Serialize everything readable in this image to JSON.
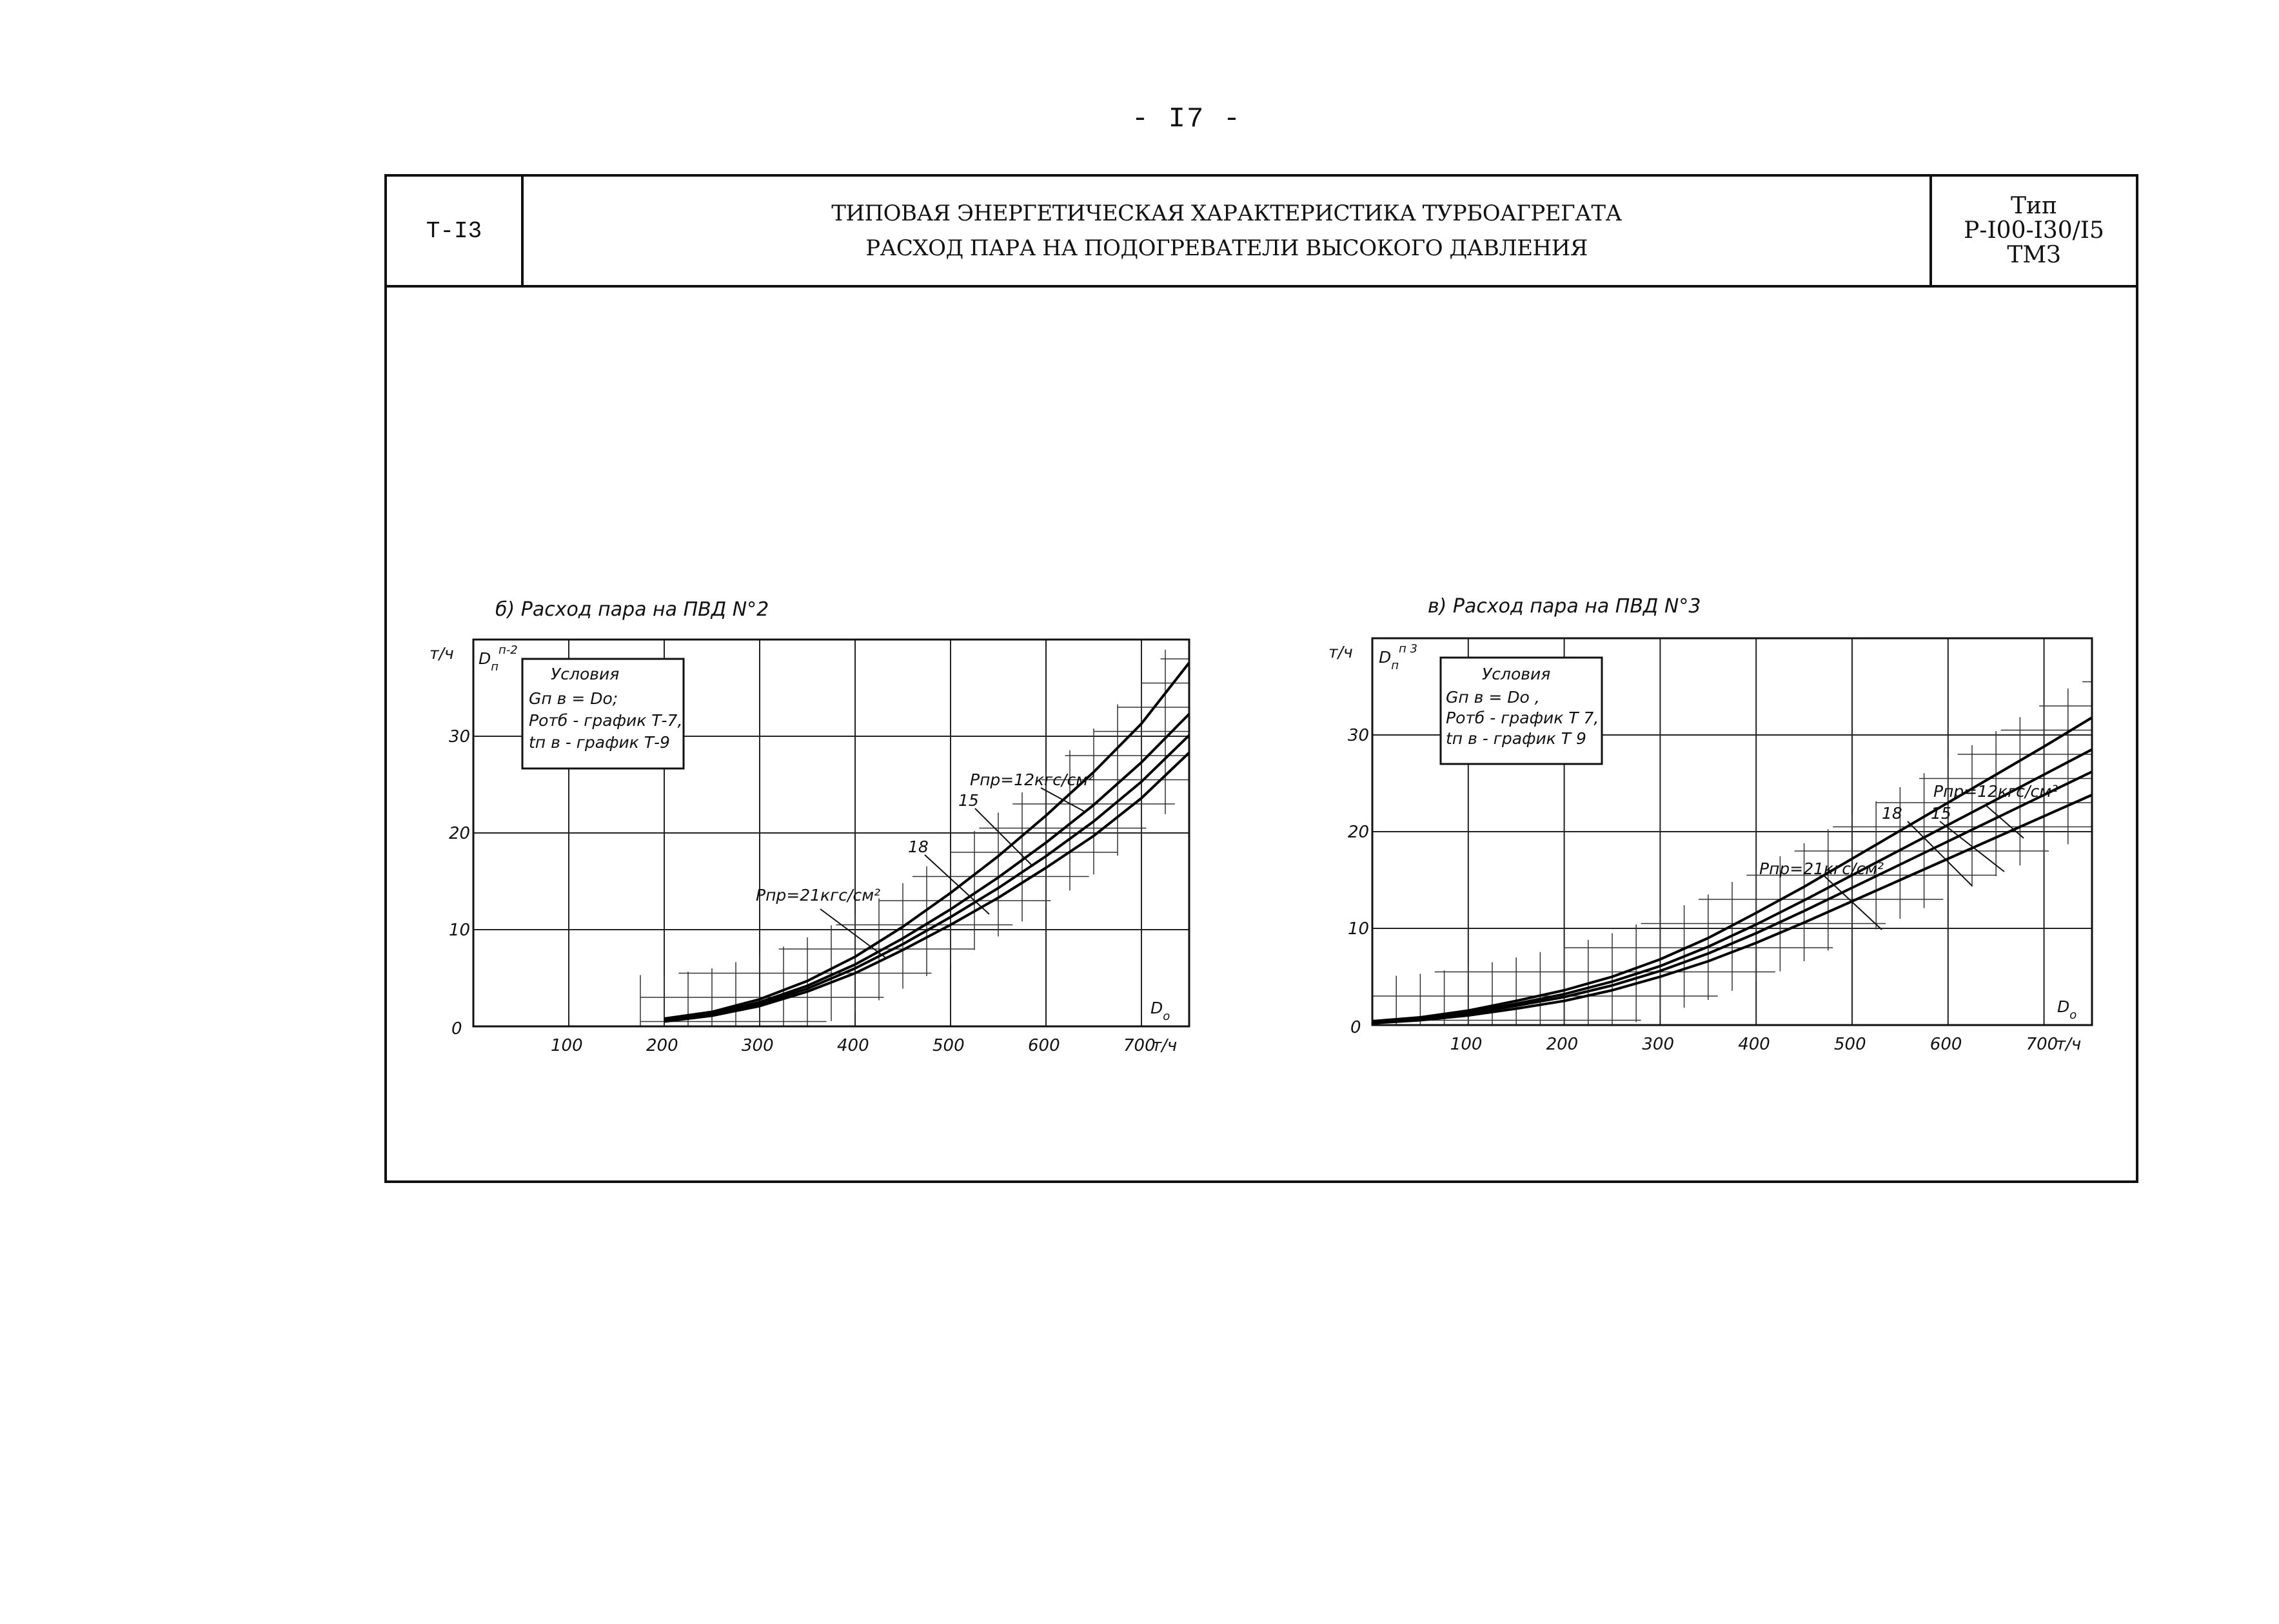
{
  "page": {
    "number": "- I7 -"
  },
  "header": {
    "code": "Т-I3",
    "title_line1": "ТИПОВАЯ ЭНЕРГЕТИЧЕСКАЯ ХАРАКТЕРИСТИКА ТУРБОАГРЕГАТА",
    "title_line2": "РАСХОД ПАРА НА ПОДОГРЕВАТЕЛИ ВЫСОКОГО ДАВЛЕНИЯ",
    "type_label": "Тип",
    "type_model": "Р-I00-I30/I5",
    "type_plant": "ТМЗ"
  },
  "chart_data": [
    {
      "type": "line",
      "title": "б) Расход пара на ПВД N°2",
      "ylabel": "т/ч",
      "ysymbol": "D",
      "ysymbol_sub": "п",
      "ysymbol_sup": "п-2",
      "xlabel": "т/ч",
      "xsymbol": "D",
      "xsymbol_sub": "о",
      "xlim": [
        0,
        750
      ],
      "ylim": [
        0,
        40
      ],
      "xticks": [
        "0",
        "100",
        "200",
        "300",
        "400",
        "500",
        "600",
        "700"
      ],
      "yticks": [
        "10",
        "20",
        "30"
      ],
      "grid": true,
      "conditions": {
        "heading": "Условия",
        "line1": "Gп в = Dо;",
        "line2": "Pотб - график Т-7,",
        "line3": "tп в - график Т-9"
      },
      "series": [
        {
          "name": "Pпр=12 кгс/см²",
          "label": "Pпр=12кгс/см²",
          "x": [
            200,
            250,
            300,
            350,
            400,
            450,
            500,
            550,
            600,
            650,
            700,
            750
          ],
          "values": [
            0.8,
            1.5,
            2.8,
            4.7,
            7.2,
            10.3,
            13.8,
            17.6,
            21.8,
            26.3,
            31.3,
            37.6
          ]
        },
        {
          "name": "15",
          "label": "15",
          "x": [
            200,
            250,
            300,
            350,
            400,
            450,
            500,
            550,
            600,
            650,
            700,
            750
          ],
          "values": [
            0.7,
            1.3,
            2.5,
            4.2,
            6.4,
            9.1,
            12.1,
            15.4,
            19.0,
            22.9,
            27.3,
            32.3
          ]
        },
        {
          "name": "18",
          "label": "18",
          "x": [
            200,
            250,
            300,
            350,
            400,
            450,
            500,
            550,
            600,
            650,
            700,
            750
          ],
          "values": [
            0.6,
            1.2,
            2.3,
            3.9,
            6.0,
            8.5,
            11.3,
            14.3,
            17.6,
            21.2,
            25.3,
            30.1
          ]
        },
        {
          "name": "Pпр=21 кгс/см²",
          "label": "Pпр=21кгс/см²",
          "x": [
            200,
            250,
            300,
            350,
            400,
            450,
            500,
            550,
            600,
            650,
            700,
            750
          ],
          "values": [
            0.5,
            1.1,
            2.1,
            3.6,
            5.5,
            7.9,
            10.5,
            13.3,
            16.4,
            19.7,
            23.6,
            28.3
          ]
        }
      ]
    },
    {
      "type": "line",
      "title": "в) Расход пара на ПВД N°3",
      "ylabel": "т/ч",
      "ysymbol": "D",
      "ysymbol_sub": "п",
      "ysymbol_sup": "п 3",
      "xlabel": "т/ч",
      "xsymbol": "D",
      "xsymbol_sub": "о",
      "xlim": [
        0,
        750
      ],
      "ylim": [
        0,
        40
      ],
      "xticks": [
        "0",
        "100",
        "200",
        "300",
        "400",
        "500",
        "600",
        "700"
      ],
      "yticks": [
        "10",
        "20",
        "30"
      ],
      "grid": true,
      "conditions": {
        "heading": "Условия",
        "line1": "Gп в = Dо ,",
        "line2": "Pотб - график Т 7,",
        "line3": "tп в - график Т 9"
      },
      "series": [
        {
          "name": "Pпр=12 кгс/см²",
          "label": "Pпр=12кгс/см²",
          "x": [
            0,
            50,
            100,
            150,
            200,
            250,
            300,
            350,
            400,
            450,
            500,
            550,
            600,
            650,
            700,
            750
          ],
          "values": [
            0.4,
            0.8,
            1.5,
            2.5,
            3.6,
            5.0,
            6.8,
            9.0,
            11.6,
            14.3,
            17.2,
            20.1,
            23.0,
            25.9,
            28.8,
            31.8
          ]
        },
        {
          "name": "15",
          "label": "15",
          "x": [
            0,
            50,
            100,
            150,
            200,
            250,
            300,
            350,
            400,
            450,
            500,
            550,
            600,
            650,
            700,
            750
          ],
          "values": [
            0.3,
            0.7,
            1.3,
            2.2,
            3.2,
            4.5,
            6.1,
            8.1,
            10.4,
            12.9,
            15.5,
            18.1,
            20.7,
            23.3,
            25.9,
            28.5
          ]
        },
        {
          "name": "18",
          "label": "18",
          "x": [
            0,
            50,
            100,
            150,
            200,
            250,
            300,
            350,
            400,
            450,
            500,
            550,
            600,
            650,
            700,
            750
          ],
          "values": [
            0.3,
            0.6,
            1.2,
            2.0,
            2.9,
            4.1,
            5.6,
            7.4,
            9.5,
            11.8,
            14.2,
            16.6,
            19.0,
            21.4,
            23.8,
            26.2
          ]
        },
        {
          "name": "Pпр=21 кгс/см²",
          "label": "Pпр=21кгс/см²",
          "x": [
            0,
            50,
            100,
            150,
            200,
            250,
            300,
            350,
            400,
            450,
            500,
            550,
            600,
            650,
            700,
            750
          ],
          "values": [
            0.2,
            0.5,
            1.0,
            1.7,
            2.5,
            3.6,
            5.0,
            6.6,
            8.5,
            10.6,
            12.8,
            15.0,
            17.2,
            19.4,
            21.6,
            23.8
          ]
        }
      ]
    }
  ]
}
